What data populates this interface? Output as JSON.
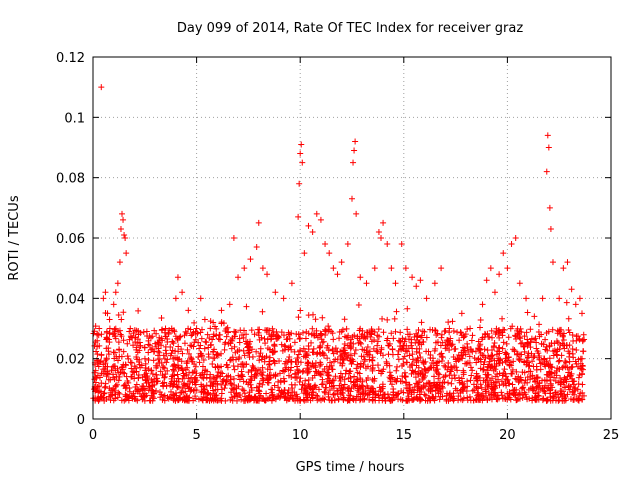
{
  "chart_data": {
    "type": "scatter",
    "title": "Day 099 of 2014, Rate Of TEC Index for receiver graz",
    "xlabel": "GPS time / hours",
    "ylabel": "ROTI / TECUs",
    "xlim": [
      0,
      25
    ],
    "ylim": [
      0,
      0.12
    ],
    "x_ticks": [
      0,
      5,
      10,
      15,
      20,
      25
    ],
    "x_tick_labels": [
      "0",
      "5",
      "10",
      "15",
      "20",
      "25"
    ],
    "y_ticks": [
      0,
      0.02,
      0.04,
      0.06,
      0.08,
      0.1,
      0.12
    ],
    "y_tick_labels": [
      "0",
      "0.02",
      "0.04",
      "0.06",
      "0.08",
      "0.1",
      "0.12"
    ],
    "grid": true,
    "marker": "+",
    "color": "#ff0000",
    "series": [
      {
        "name": "ROTI",
        "summary": "dense band between ~0.006 and ~0.03 TECU across 0–23.7 h with scattered spikes",
        "x_range": [
          0,
          23.7
        ],
        "baseline_range": [
          0.006,
          0.03
        ],
        "points": [
          [
            0.1,
            0.018
          ],
          [
            0.2,
            0.024
          ],
          [
            0.3,
            0.03
          ],
          [
            0.4,
            0.11
          ],
          [
            0.5,
            0.04
          ],
          [
            0.6,
            0.042
          ],
          [
            0.7,
            0.035
          ],
          [
            0.8,
            0.033
          ],
          [
            1.0,
            0.038
          ],
          [
            1.1,
            0.042
          ],
          [
            1.2,
            0.045
          ],
          [
            1.3,
            0.052
          ],
          [
            1.35,
            0.063
          ],
          [
            1.4,
            0.068
          ],
          [
            1.45,
            0.066
          ],
          [
            1.5,
            0.061
          ],
          [
            1.55,
            0.06
          ],
          [
            1.6,
            0.055
          ],
          [
            1.8,
            0.03
          ],
          [
            2.2,
            0.028
          ],
          [
            2.6,
            0.029
          ],
          [
            3.0,
            0.025
          ],
          [
            3.5,
            0.03
          ],
          [
            3.8,
            0.03
          ],
          [
            4.0,
            0.04
          ],
          [
            4.1,
            0.047
          ],
          [
            4.3,
            0.042
          ],
          [
            4.6,
            0.036
          ],
          [
            5.0,
            0.03
          ],
          [
            5.2,
            0.04
          ],
          [
            5.4,
            0.033
          ],
          [
            5.8,
            0.032
          ],
          [
            6.2,
            0.036
          ],
          [
            6.6,
            0.038
          ],
          [
            6.8,
            0.06
          ],
          [
            7.0,
            0.047
          ],
          [
            7.3,
            0.05
          ],
          [
            7.6,
            0.053
          ],
          [
            7.9,
            0.057
          ],
          [
            8.0,
            0.065
          ],
          [
            8.2,
            0.05
          ],
          [
            8.4,
            0.048
          ],
          [
            8.8,
            0.042
          ],
          [
            9.2,
            0.04
          ],
          [
            9.6,
            0.045
          ],
          [
            9.9,
            0.067
          ],
          [
            9.95,
            0.078
          ],
          [
            10.0,
            0.088
          ],
          [
            10.05,
            0.091
          ],
          [
            10.1,
            0.085
          ],
          [
            10.2,
            0.055
          ],
          [
            10.4,
            0.064
          ],
          [
            10.6,
            0.062
          ],
          [
            10.8,
            0.068
          ],
          [
            11.0,
            0.066
          ],
          [
            11.2,
            0.058
          ],
          [
            11.4,
            0.055
          ],
          [
            11.6,
            0.05
          ],
          [
            11.8,
            0.048
          ],
          [
            12.0,
            0.052
          ],
          [
            12.3,
            0.058
          ],
          [
            12.5,
            0.073
          ],
          [
            12.55,
            0.085
          ],
          [
            12.6,
            0.089
          ],
          [
            12.65,
            0.092
          ],
          [
            12.7,
            0.068
          ],
          [
            12.9,
            0.047
          ],
          [
            13.2,
            0.045
          ],
          [
            13.6,
            0.05
          ],
          [
            13.8,
            0.062
          ],
          [
            13.9,
            0.06
          ],
          [
            14.0,
            0.065
          ],
          [
            14.2,
            0.058
          ],
          [
            14.4,
            0.05
          ],
          [
            14.6,
            0.045
          ],
          [
            14.9,
            0.058
          ],
          [
            15.1,
            0.05
          ],
          [
            15.4,
            0.047
          ],
          [
            15.6,
            0.044
          ],
          [
            15.8,
            0.046
          ],
          [
            16.1,
            0.04
          ],
          [
            16.5,
            0.045
          ],
          [
            16.8,
            0.05
          ],
          [
            17.2,
            0.03
          ],
          [
            17.8,
            0.035
          ],
          [
            18.2,
            0.03
          ],
          [
            18.8,
            0.038
          ],
          [
            19.0,
            0.046
          ],
          [
            19.2,
            0.05
          ],
          [
            19.4,
            0.042
          ],
          [
            19.6,
            0.048
          ],
          [
            19.8,
            0.055
          ],
          [
            20.0,
            0.05
          ],
          [
            20.2,
            0.058
          ],
          [
            20.4,
            0.06
          ],
          [
            20.6,
            0.045
          ],
          [
            20.9,
            0.04
          ],
          [
            21.3,
            0.034
          ],
          [
            21.7,
            0.04
          ],
          [
            21.9,
            0.082
          ],
          [
            21.95,
            0.094
          ],
          [
            22.0,
            0.09
          ],
          [
            22.05,
            0.07
          ],
          [
            22.1,
            0.063
          ],
          [
            22.2,
            0.052
          ],
          [
            22.5,
            0.04
          ],
          [
            22.7,
            0.05
          ],
          [
            22.9,
            0.052
          ],
          [
            23.1,
            0.043
          ],
          [
            23.3,
            0.038
          ],
          [
            23.5,
            0.04
          ],
          [
            23.6,
            0.035
          ]
        ]
      }
    ]
  }
}
